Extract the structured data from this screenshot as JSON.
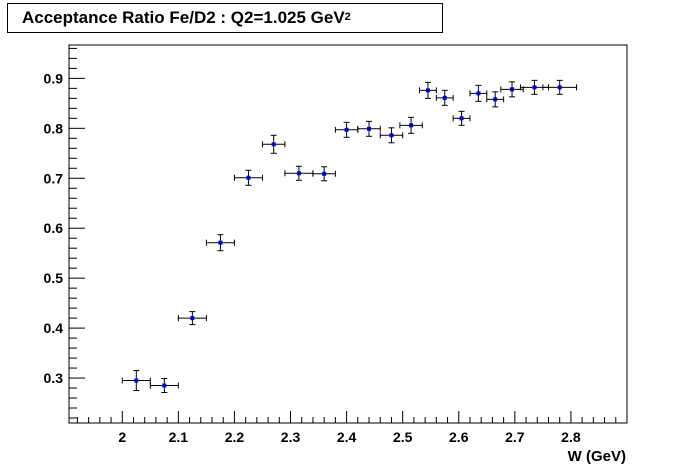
{
  "chart_data": {
    "type": "scatter",
    "title_main": "Acceptance Ratio Fe/D2 : Q2=1.025 GeV",
    "title_sup": "2",
    "xlabel": "W (GeV)",
    "ylabel": "",
    "xlim": [
      1.905,
      2.9
    ],
    "ylim": [
      0.21,
      0.9668
    ],
    "x_ticks": [
      2.0,
      2.1,
      2.2,
      2.3,
      2.4,
      2.5,
      2.6,
      2.7,
      2.8
    ],
    "x_tick_labels": [
      "2",
      "2.1",
      "2.2",
      "2.3",
      "2.4",
      "2.5",
      "2.6",
      "2.7",
      "2.8"
    ],
    "y_ticks": [
      0.3,
      0.4,
      0.5,
      0.6,
      0.7,
      0.8,
      0.9
    ],
    "y_tick_labels": [
      "0.3",
      "0.4",
      "0.5",
      "0.6",
      "0.7",
      "0.8",
      "0.9"
    ],
    "grid": false,
    "marker_color": "#0000cc",
    "error_bar_color": "#000000",
    "points": [
      {
        "x": 2.025,
        "y": 0.295,
        "xerr": 0.025,
        "yerr": 0.02
      },
      {
        "x": 2.075,
        "y": 0.285,
        "xerr": 0.025,
        "yerr": 0.014
      },
      {
        "x": 2.125,
        "y": 0.42,
        "xerr": 0.025,
        "yerr": 0.013
      },
      {
        "x": 2.175,
        "y": 0.571,
        "xerr": 0.025,
        "yerr": 0.016
      },
      {
        "x": 2.225,
        "y": 0.701,
        "xerr": 0.025,
        "yerr": 0.015
      },
      {
        "x": 2.27,
        "y": 0.768,
        "xerr": 0.02,
        "yerr": 0.018
      },
      {
        "x": 2.315,
        "y": 0.71,
        "xerr": 0.025,
        "yerr": 0.014
      },
      {
        "x": 2.36,
        "y": 0.709,
        "xerr": 0.02,
        "yerr": 0.014
      },
      {
        "x": 2.4,
        "y": 0.797,
        "xerr": 0.02,
        "yerr": 0.015
      },
      {
        "x": 2.44,
        "y": 0.799,
        "xerr": 0.02,
        "yerr": 0.015
      },
      {
        "x": 2.48,
        "y": 0.786,
        "xerr": 0.02,
        "yerr": 0.015
      },
      {
        "x": 2.515,
        "y": 0.806,
        "xerr": 0.02,
        "yerr": 0.016
      },
      {
        "x": 2.545,
        "y": 0.876,
        "xerr": 0.015,
        "yerr": 0.016
      },
      {
        "x": 2.575,
        "y": 0.861,
        "xerr": 0.015,
        "yerr": 0.015
      },
      {
        "x": 2.605,
        "y": 0.82,
        "xerr": 0.015,
        "yerr": 0.014
      },
      {
        "x": 2.635,
        "y": 0.87,
        "xerr": 0.015,
        "yerr": 0.016
      },
      {
        "x": 2.665,
        "y": 0.858,
        "xerr": 0.015,
        "yerr": 0.015
      },
      {
        "x": 2.695,
        "y": 0.878,
        "xerr": 0.02,
        "yerr": 0.015
      },
      {
        "x": 2.735,
        "y": 0.882,
        "xerr": 0.025,
        "yerr": 0.014
      },
      {
        "x": 2.78,
        "y": 0.882,
        "xerr": 0.03,
        "yerr": 0.014
      }
    ]
  }
}
